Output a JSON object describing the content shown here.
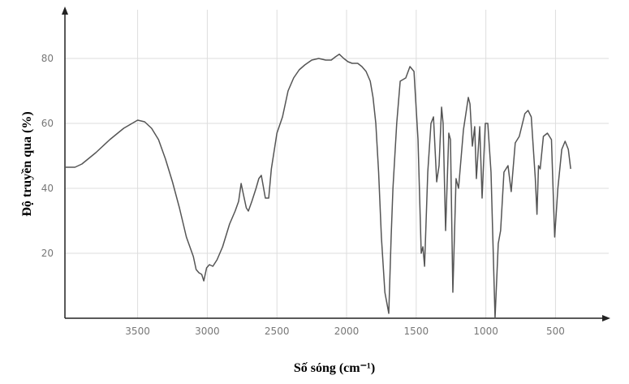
{
  "chart_data": {
    "type": "line",
    "xlabel": "Số sóng (cm⁻¹)",
    "ylabel": "Độ truyền qua (%)",
    "color": "#555555",
    "grid": true,
    "xlim": [
      4022,
      118
    ],
    "ylim": [
      0,
      95
    ],
    "xticks": [
      3500,
      3000,
      2500,
      2000,
      1500,
      1000,
      500
    ],
    "yticks": [
      20,
      40,
      60,
      80
    ],
    "x": [
      4022,
      3950,
      3900,
      3800,
      3700,
      3600,
      3500,
      3450,
      3400,
      3350,
      3300,
      3250,
      3200,
      3150,
      3100,
      3080,
      3060,
      3040,
      3025,
      3005,
      2985,
      2960,
      2930,
      2890,
      2840,
      2800,
      2775,
      2757,
      2740,
      2720,
      2705,
      2680,
      2650,
      2630,
      2612,
      2583,
      2559,
      2540,
      2500,
      2460,
      2420,
      2380,
      2340,
      2300,
      2250,
      2200,
      2150,
      2110,
      2080,
      2052,
      2020,
      1990,
      1960,
      1920,
      1890,
      1860,
      1830,
      1810,
      1790,
      1770,
      1750,
      1725,
      1697,
      1680,
      1667,
      1640,
      1615,
      1575,
      1545,
      1516,
      1487,
      1464,
      1452,
      1440,
      1417,
      1394,
      1376,
      1353,
      1336,
      1318,
      1307,
      1289,
      1266,
      1254,
      1237,
      1214,
      1196,
      1161,
      1126,
      1114,
      1097,
      1080,
      1068,
      1044,
      1027,
      1004,
      986,
      963,
      934,
      911,
      894,
      870,
      841,
      818,
      789,
      760,
      720,
      697,
      674,
      645,
      633,
      622,
      610,
      587,
      558,
      529,
      506,
      483,
      455,
      431,
      408,
      391
    ],
    "values": [
      46.5,
      46.5,
      47.5,
      51,
      55,
      58.5,
      61,
      60.5,
      58.5,
      55,
      49,
      42,
      34,
      25,
      19,
      15,
      14,
      13.5,
      11.5,
      15.5,
      16.5,
      16,
      18,
      22,
      29,
      33,
      36,
      41.5,
      38,
      34,
      33,
      36,
      40,
      43,
      44,
      37,
      37,
      46,
      57,
      62,
      70,
      74,
      76.5,
      78,
      79.5,
      80,
      79.5,
      79.5,
      80.5,
      81.3,
      80,
      79,
      78.5,
      78.5,
      77.5,
      76,
      73,
      68,
      60,
      45,
      25,
      8,
      1.5,
      25,
      40,
      60,
      73,
      74,
      77.5,
      76,
      55,
      20,
      22,
      16,
      45,
      60,
      62,
      42,
      47,
      65,
      60,
      27,
      57,
      55,
      8,
      43,
      40,
      58,
      68,
      66,
      53,
      59,
      43,
      59,
      37,
      60,
      60,
      45,
      0,
      23,
      27,
      45,
      47,
      39,
      54,
      56,
      63,
      64,
      62,
      43,
      32,
      47,
      46,
      56,
      57,
      55,
      25,
      40,
      52,
      54.5,
      52,
      46
    ]
  }
}
